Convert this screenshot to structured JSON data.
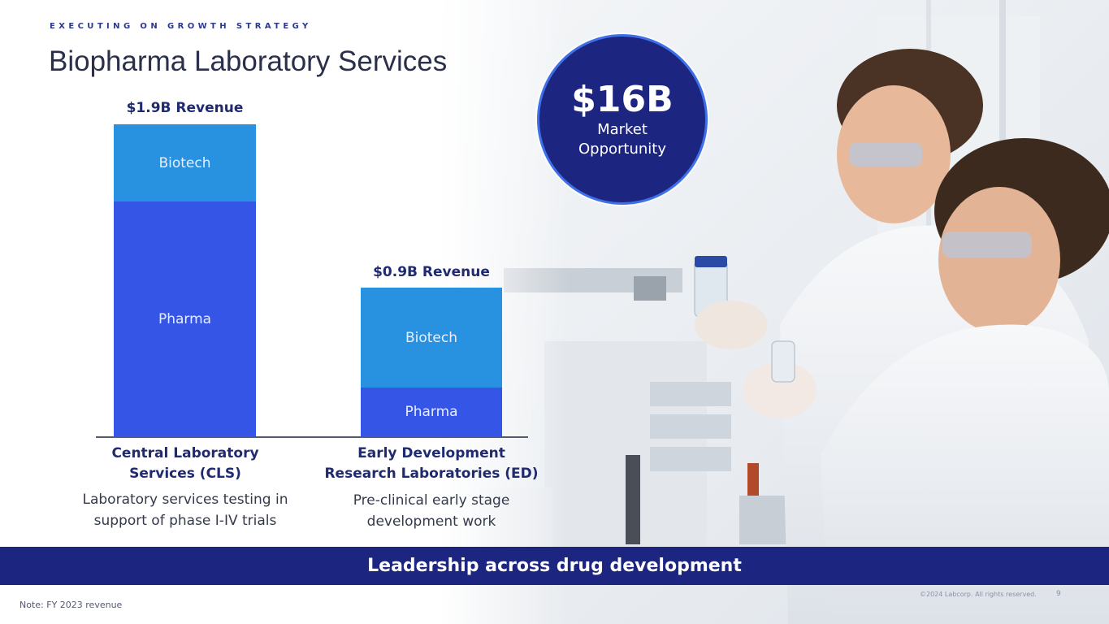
{
  "slide": {
    "eyebrow": "EXECUTING ON GROWTH STRATEGY",
    "title": "Biopharma Laboratory Services"
  },
  "bars": [
    {
      "revenue_label": "$1.9B  Revenue",
      "segments": [
        {
          "label": "Biotech",
          "color": "#2892e1"
        },
        {
          "label": "Pharma",
          "color": "#3455e6"
        }
      ],
      "category": [
        "Central Laboratory",
        "Services (CLS)"
      ],
      "description": [
        "Laboratory services testing in",
        "support of phase I-IV trials"
      ]
    },
    {
      "revenue_label": "$0.9B  Revenue",
      "segments": [
        {
          "label": "Biotech",
          "color": "#2892e1"
        },
        {
          "label": "Pharma",
          "color": "#3455e6"
        }
      ],
      "category": [
        "Early Development",
        "Research Laboratories (ED)"
      ],
      "description": [
        "Pre-clinical early stage",
        "development work"
      ]
    }
  ],
  "market": {
    "value": "$16B",
    "label_line1": "Market",
    "label_line2": "Opportunity"
  },
  "banner": "Leadership across drug development",
  "footer": {
    "note": "Note: FY 2023 revenue",
    "copyright": "©2024 Labcorp. All rights reserved.",
    "page": "9"
  },
  "image": {
    "icon": "lab-scientists-photo"
  }
}
